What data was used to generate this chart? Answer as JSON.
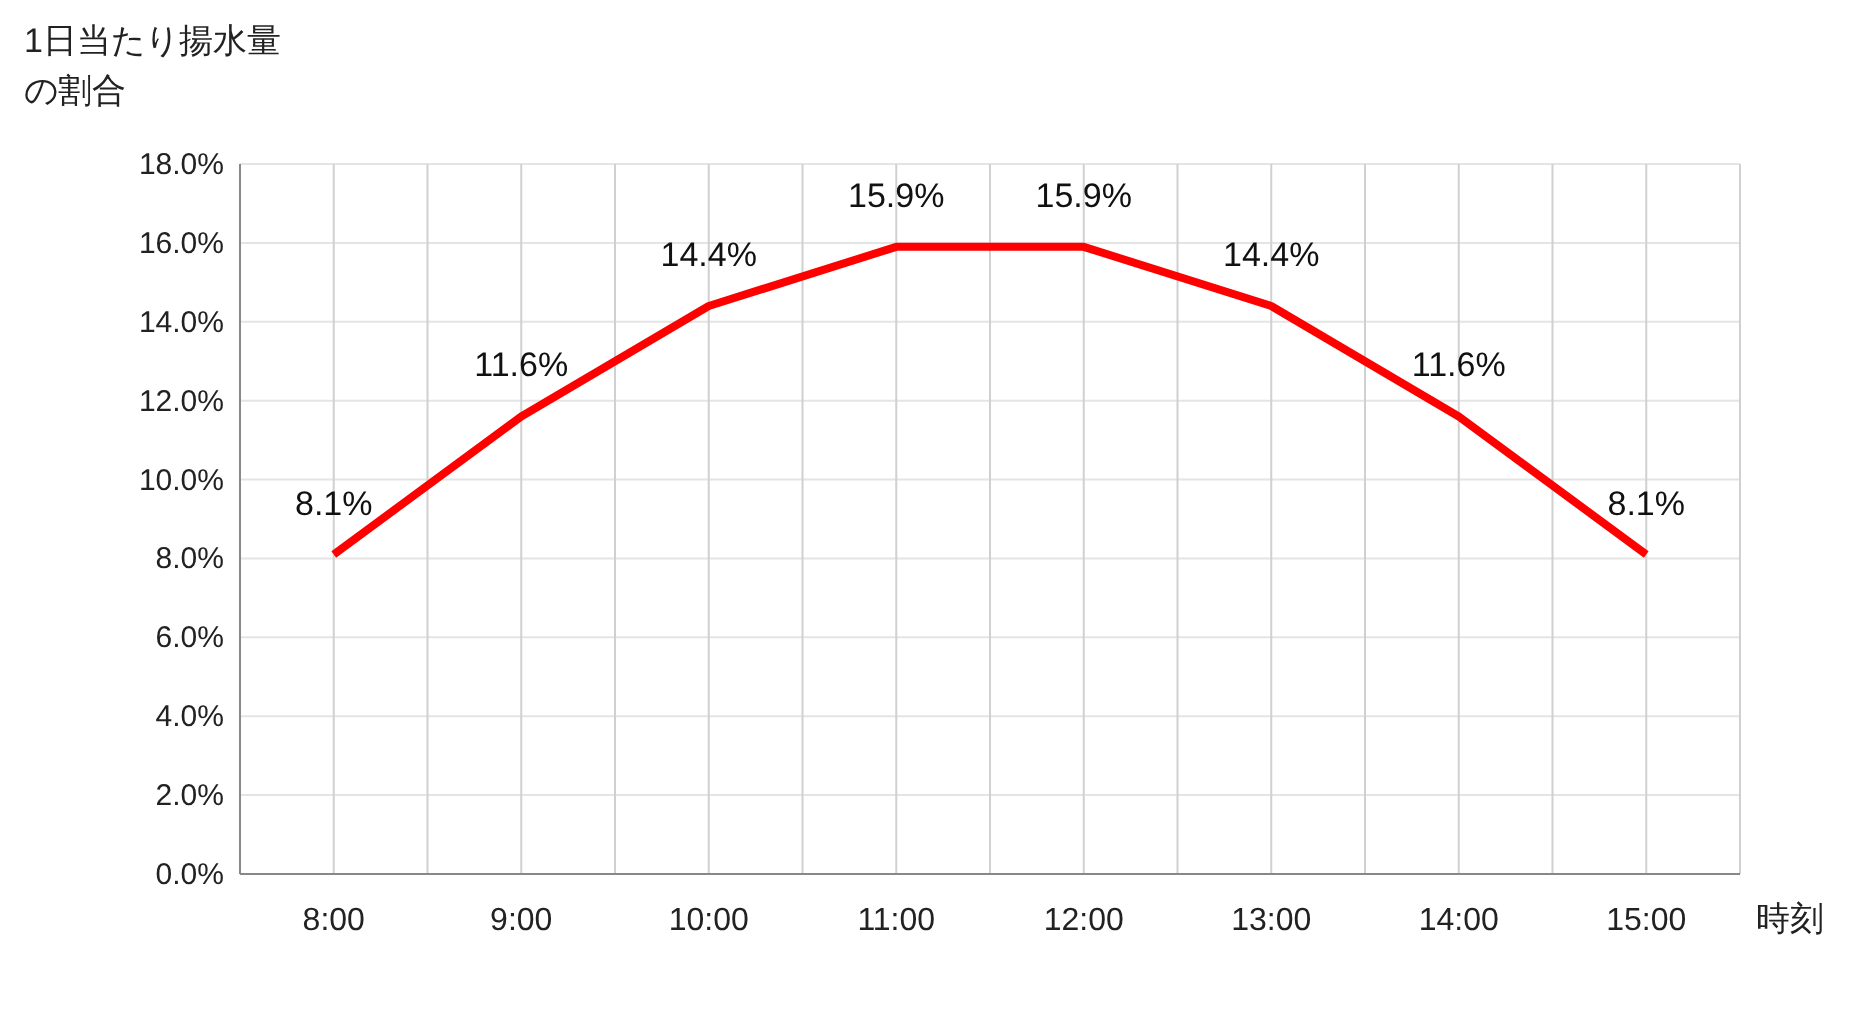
{
  "chart_data": {
    "type": "line",
    "ylabel": "1日当たり揚水量の割合",
    "xlabel": "時刻",
    "categories": [
      "8:00",
      "9:00",
      "10:00",
      "11:00",
      "12:00",
      "13:00",
      "14:00",
      "15:00"
    ],
    "series": [
      {
        "color": "#ff0000",
        "values": [
          8.1,
          11.6,
          14.4,
          15.9,
          15.9,
          14.4,
          11.6,
          8.1
        ],
        "value_labels": [
          "8.1%",
          "11.6%",
          "14.4%",
          "15.9%",
          "15.9%",
          "14.4%",
          "11.6%",
          "8.1%"
        ]
      }
    ],
    "ylim": [
      0,
      18
    ],
    "yticks": [
      {
        "value": 0,
        "label": "0.0%"
      },
      {
        "value": 2,
        "label": "2.0%"
      },
      {
        "value": 4,
        "label": "4.0%"
      },
      {
        "value": 6,
        "label": "6.0%"
      },
      {
        "value": 8,
        "label": "8.0%"
      },
      {
        "value": 10,
        "label": "10.0%"
      },
      {
        "value": 12,
        "label": "12.0%"
      },
      {
        "value": 14,
        "label": "14.0%"
      },
      {
        "value": 16,
        "label": "16.0%"
      },
      {
        "value": 18,
        "label": "18.0%"
      }
    ],
    "grid": true,
    "marker": "none",
    "line_style": "solid"
  }
}
